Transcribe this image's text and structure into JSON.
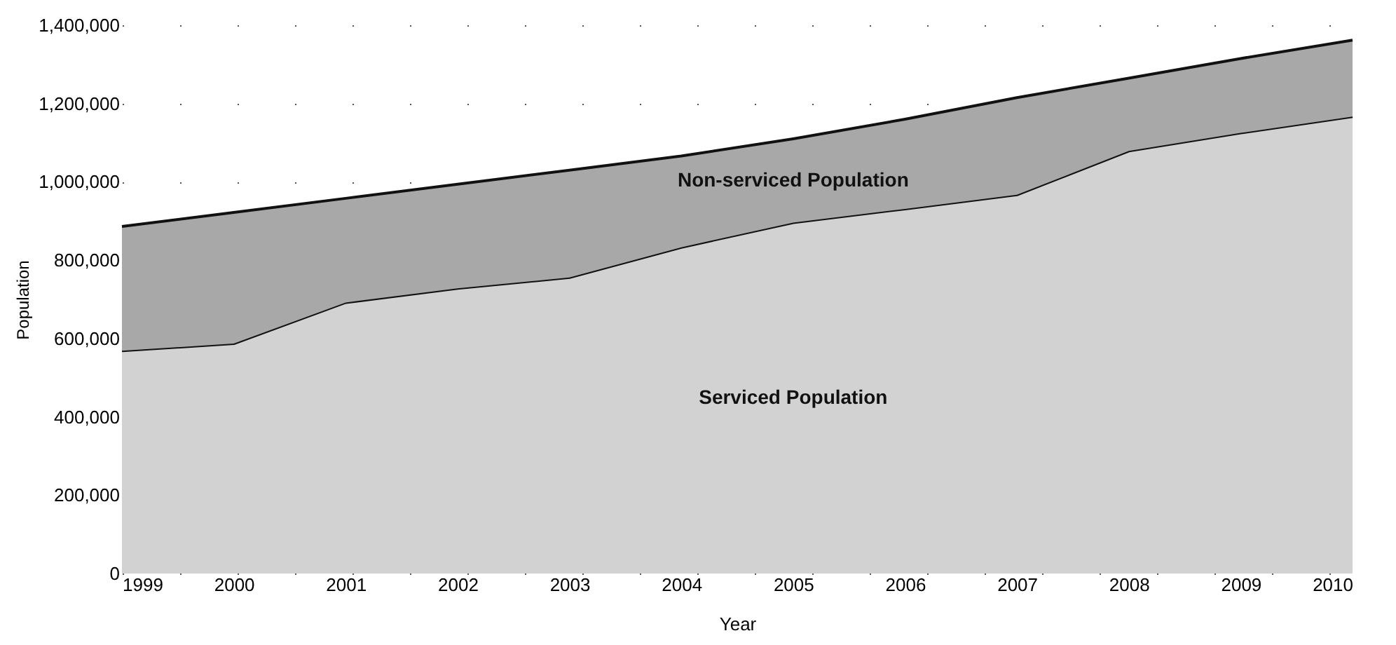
{
  "chart_data": {
    "type": "area",
    "stacked": true,
    "xlabel": "Year",
    "ylabel": "Population",
    "x": [
      1999,
      2000,
      2001,
      2002,
      2003,
      2004,
      2005,
      2006,
      2007,
      2008,
      2009,
      2010
    ],
    "series": [
      {
        "name": "Serviced Population",
        "color": "#d2d2d2",
        "values": [
          569000,
          587000,
          692000,
          728000,
          756000,
          833000,
          896000,
          931000,
          967000,
          1079000,
          1125000,
          1167000
        ]
      },
      {
        "name": "Non-serviced Population",
        "color": "#a8a8a8",
        "values": [
          317000,
          335000,
          266000,
          266000,
          274000,
          233000,
          214000,
          229000,
          248000,
          186000,
          190000,
          195000
        ]
      }
    ],
    "xlim": [
      1999,
      2010
    ],
    "xticks": [
      1999,
      2000,
      2001,
      2002,
      2003,
      2004,
      2005,
      2006,
      2007,
      2008,
      2009,
      2010
    ],
    "ylim": [
      0,
      1400000
    ],
    "yticks": [
      0,
      {
        "value": 200000,
        "label": "200,000"
      },
      {
        "value": 400000,
        "label": "400,000"
      },
      {
        "value": 600000,
        "label": "600,000"
      },
      {
        "value": 800000,
        "label": "800,000"
      },
      {
        "value": 1000000,
        "label": "1,000,000"
      },
      {
        "value": 1200000,
        "label": "1,200,000"
      },
      {
        "value": 1400000,
        "label": "1,400,000"
      }
    ],
    "grid": "y"
  }
}
